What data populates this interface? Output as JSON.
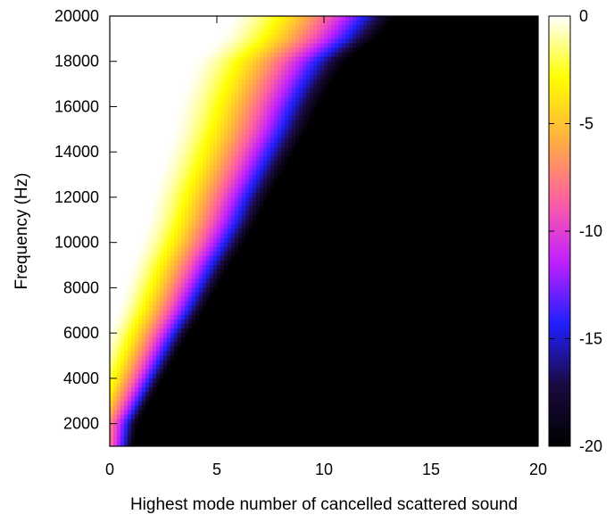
{
  "chart_data": {
    "type": "heatmap",
    "title": "",
    "xlabel": "Highest mode number of cancelled scattered sound",
    "ylabel": "Frequency (Hz)",
    "xlim": [
      0,
      20
    ],
    "ylim": [
      1000,
      20000
    ],
    "x_ticks": [
      "0",
      "5",
      "10",
      "15",
      "20"
    ],
    "y_ticks": [
      "2000",
      "4000",
      "6000",
      "8000",
      "10000",
      "12000",
      "14000",
      "16000",
      "18000",
      "20000"
    ],
    "colorbar": {
      "range": [
        -20,
        0
      ],
      "ticks": [
        "0",
        "-5",
        "-10",
        "-15",
        "-20"
      ],
      "colormap": [
        "#000000",
        "#1a0a40",
        "#2020ff",
        "#c020ff",
        "#ff60a0",
        "#ffb040",
        "#ffff00",
        "#ffffff"
      ]
    },
    "cutoff_boundary": {
      "description_free": true,
      "frequency": [
        1000,
        2000,
        3000,
        4000,
        5000,
        6000,
        7000,
        8000,
        9000,
        10000,
        11000,
        12000,
        13000,
        14000,
        15000,
        16000,
        17000,
        18000,
        19000,
        20000
      ],
      "mode_at_minus20dB": [
        1.1,
        1.3,
        1.9,
        2.5,
        3.1,
        3.7,
        4.4,
        5.0,
        5.6,
        6.3,
        6.9,
        7.4,
        8.0,
        8.6,
        9.2,
        9.7,
        10.3,
        11.0,
        12.4,
        13.3
      ]
    }
  }
}
